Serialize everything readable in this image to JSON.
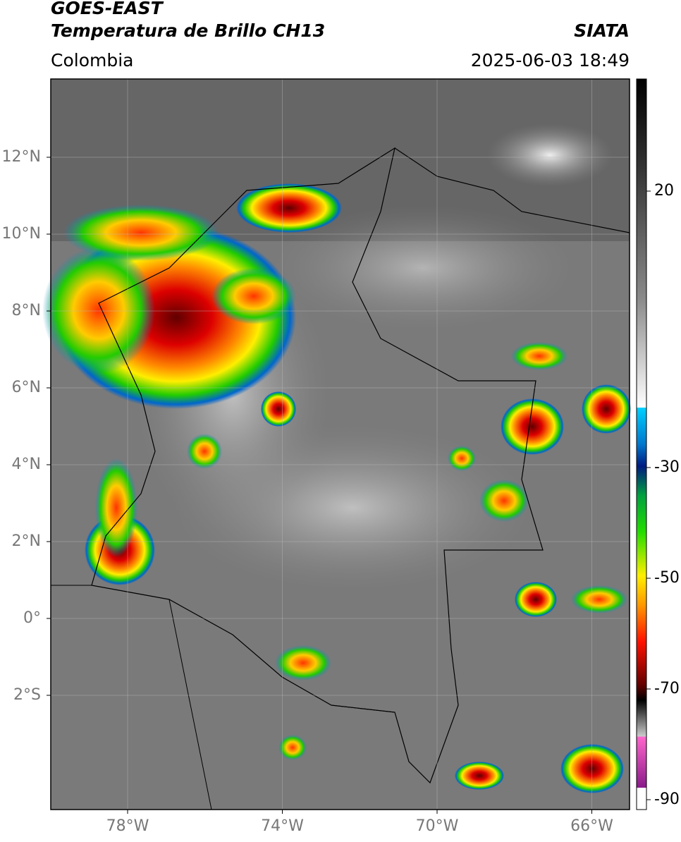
{
  "header": {
    "satellite": "GOES-EAST",
    "product": "Temperatura de Brillo CH13",
    "source": "SIATA",
    "region": "Colombia",
    "datetime": "2025-06-03 18:49"
  },
  "map": {
    "lat_labels": [
      "12°N",
      "10°N",
      "8°N",
      "6°N",
      "4°N",
      "2°N",
      "0°",
      "2°S"
    ],
    "lon_labels": [
      "78°W",
      "74°W",
      "70°W",
      "66°W"
    ]
  },
  "colorbar": {
    "ticks": [
      "20",
      "-30",
      "-50",
      "-70",
      "-90"
    ]
  }
}
